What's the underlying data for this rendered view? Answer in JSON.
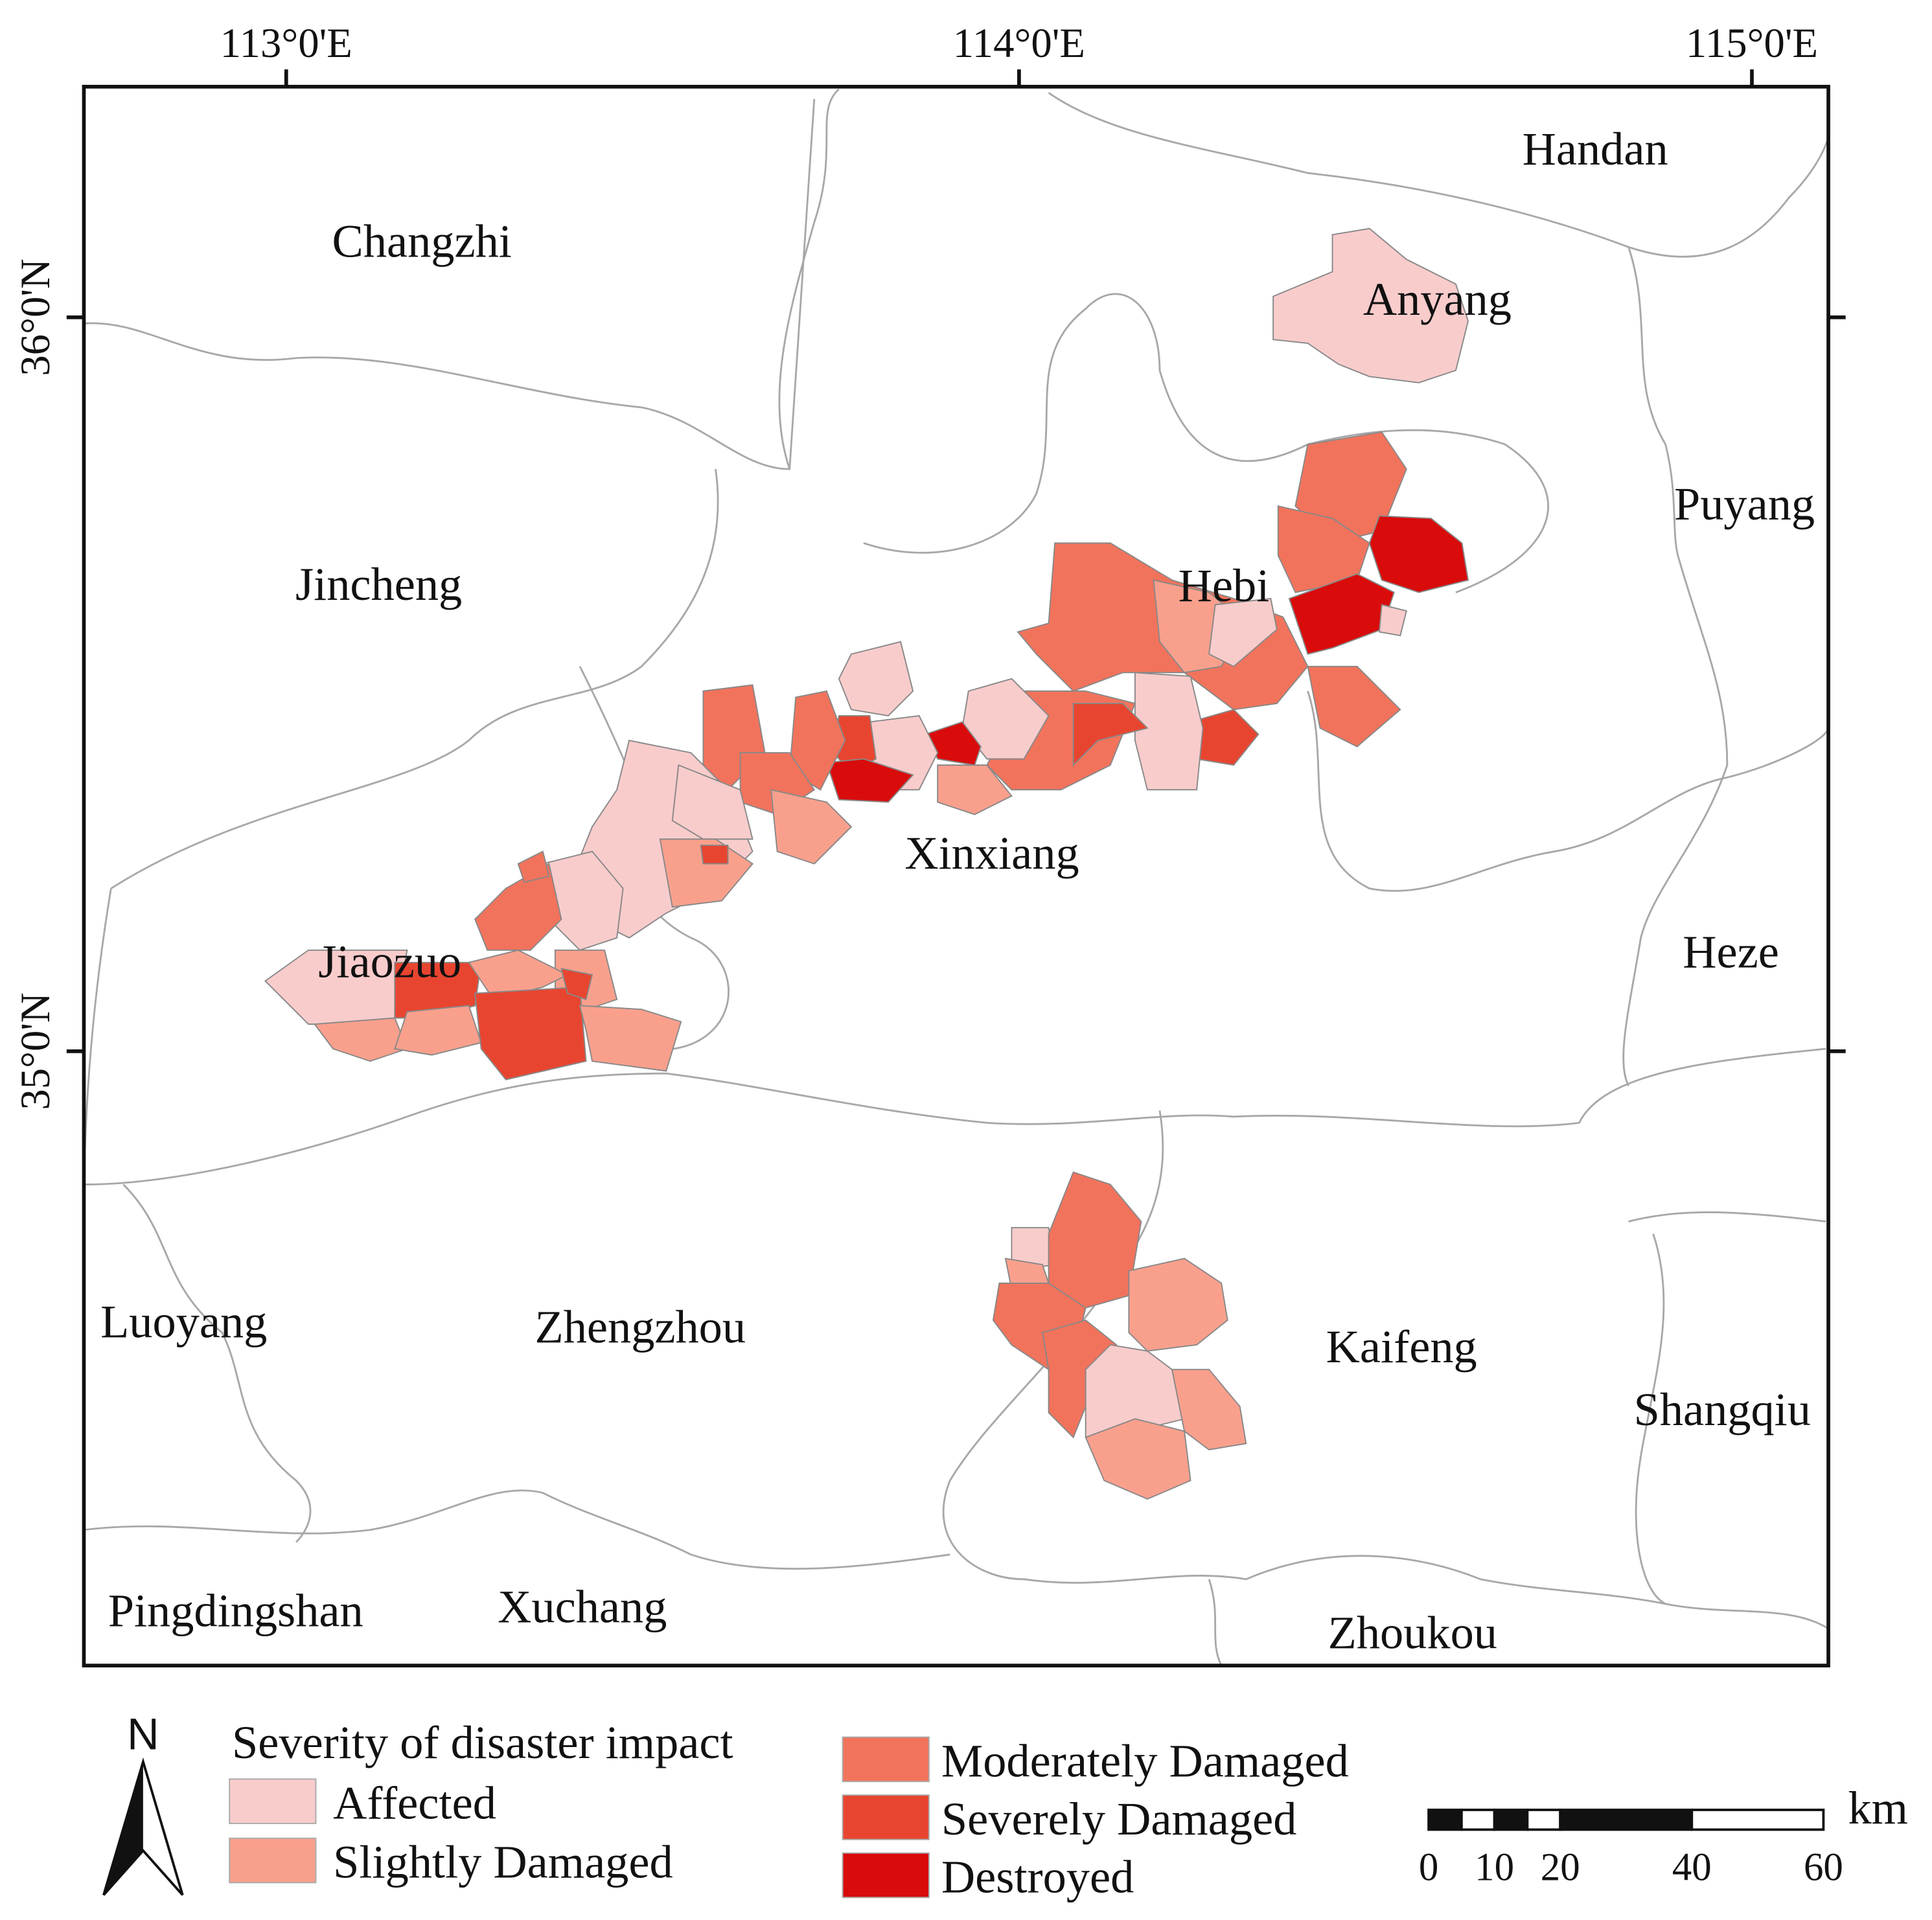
{
  "map": {
    "x_axis_labels": [
      "113°0'E",
      "114°0'E",
      "115°0'E"
    ],
    "y_axis_labels": [
      "36°0'N",
      "35°0'N"
    ],
    "regions": [
      "Handan",
      "Changzhi",
      "Anyang",
      "Puyang",
      "Jincheng",
      "Hebi",
      "Xinxiang",
      "Jiaozuo",
      "Heze",
      "Luoyang",
      "Zhengzhou",
      "Kaifeng",
      "Shangqiu",
      "Pingdingshan",
      "Xuchang",
      "Zhoukou"
    ],
    "north": "N",
    "legend": {
      "title": "Severity of disaster impact",
      "classes": [
        {
          "label": "Affected",
          "color": "#f9cccc"
        },
        {
          "label": "Slightly Damaged",
          "color": "#f9a08d"
        },
        {
          "label": "Moderately Damaged",
          "color": "#f2735c"
        },
        {
          "label": "Severely Damaged",
          "color": "#e84530"
        },
        {
          "label": "Destroyed",
          "color": "#d90b0b"
        }
      ]
    },
    "scale_bar": {
      "unit": "km",
      "ticks": [
        0,
        10,
        20,
        40,
        60
      ]
    }
  }
}
